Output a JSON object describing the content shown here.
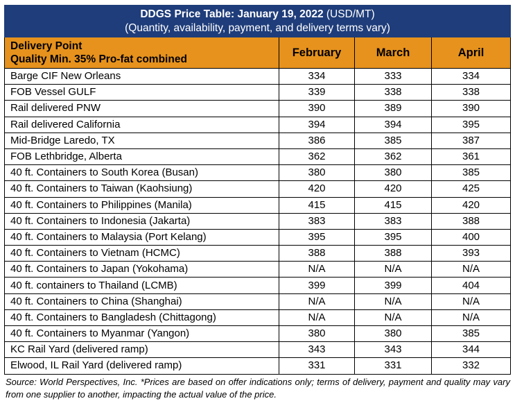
{
  "title": {
    "main": "DDGS Price Table: January 19, 2022",
    "unit": "(USD/MT)",
    "subtitle": "(Quantity, availability, payment, and delivery terms vary)"
  },
  "header": {
    "delivery_point_line1": "Delivery Point",
    "delivery_point_line2": "Quality Min. 35% Pro-fat combined",
    "months": [
      "February",
      "March",
      "April"
    ]
  },
  "rows": [
    {
      "location": "Barge CIF New Orleans",
      "feb": "334",
      "mar": "333",
      "apr": "334"
    },
    {
      "location": "FOB Vessel GULF",
      "feb": "339",
      "mar": "338",
      "apr": "338"
    },
    {
      "location": "Rail delivered PNW",
      "feb": "390",
      "mar": "389",
      "apr": "390"
    },
    {
      "location": "Rail delivered California",
      "feb": "394",
      "mar": "394",
      "apr": "395"
    },
    {
      "location": "Mid-Bridge Laredo, TX",
      "feb": "386",
      "mar": "385",
      "apr": "387"
    },
    {
      "location": "FOB Lethbridge, Alberta",
      "feb": "362",
      "mar": "362",
      "apr": "361"
    },
    {
      "location": "40 ft. Containers to South Korea (Busan)",
      "feb": "380",
      "mar": "380",
      "apr": "385"
    },
    {
      "location": "40 ft. Containers to Taiwan (Kaohsiung)",
      "feb": "420",
      "mar": "420",
      "apr": "425"
    },
    {
      "location": "40 ft. Containers to Philippines (Manila)",
      "feb": "415",
      "mar": "415",
      "apr": "420"
    },
    {
      "location": "40 ft. Containers to Indonesia (Jakarta)",
      "feb": "383",
      "mar": "383",
      "apr": "388"
    },
    {
      "location": "40 ft. Containers to Malaysia (Port Kelang)",
      "feb": "395",
      "mar": "395",
      "apr": "400"
    },
    {
      "location": "40 ft. Containers to Vietnam (HCMC)",
      "feb": "388",
      "mar": "388",
      "apr": "393"
    },
    {
      "location": "40 ft. Containers to Japan (Yokohama)",
      "feb": "N/A",
      "mar": "N/A",
      "apr": "N/A"
    },
    {
      "location": "40 ft. containers to Thailand (LCMB)",
      "feb": "399",
      "mar": "399",
      "apr": "404"
    },
    {
      "location": "40 ft. Containers to China (Shanghai)",
      "feb": "N/A",
      "mar": "N/A",
      "apr": "N/A"
    },
    {
      "location": "40 ft. Containers to Bangladesh (Chittagong)",
      "feb": "N/A",
      "mar": "N/A",
      "apr": "N/A"
    },
    {
      "location": "40 ft. Containers to Myanmar (Yangon)",
      "feb": "380",
      "mar": "380",
      "apr": "385"
    },
    {
      "location": "KC Rail Yard (delivered ramp)",
      "feb": "343",
      "mar": "343",
      "apr": "344"
    },
    {
      "location": "Elwood, IL Rail Yard (delivered ramp)",
      "feb": "331",
      "mar": "331",
      "apr": "332"
    }
  ],
  "source_note": "Source: World Perspectives, Inc. *Prices are based on offer indications only; terms of delivery, payment and quality may vary from one supplier to another, impacting the actual value of the price.",
  "colors": {
    "title_background": "#1f3d7a",
    "header_background": "#e6921d"
  }
}
